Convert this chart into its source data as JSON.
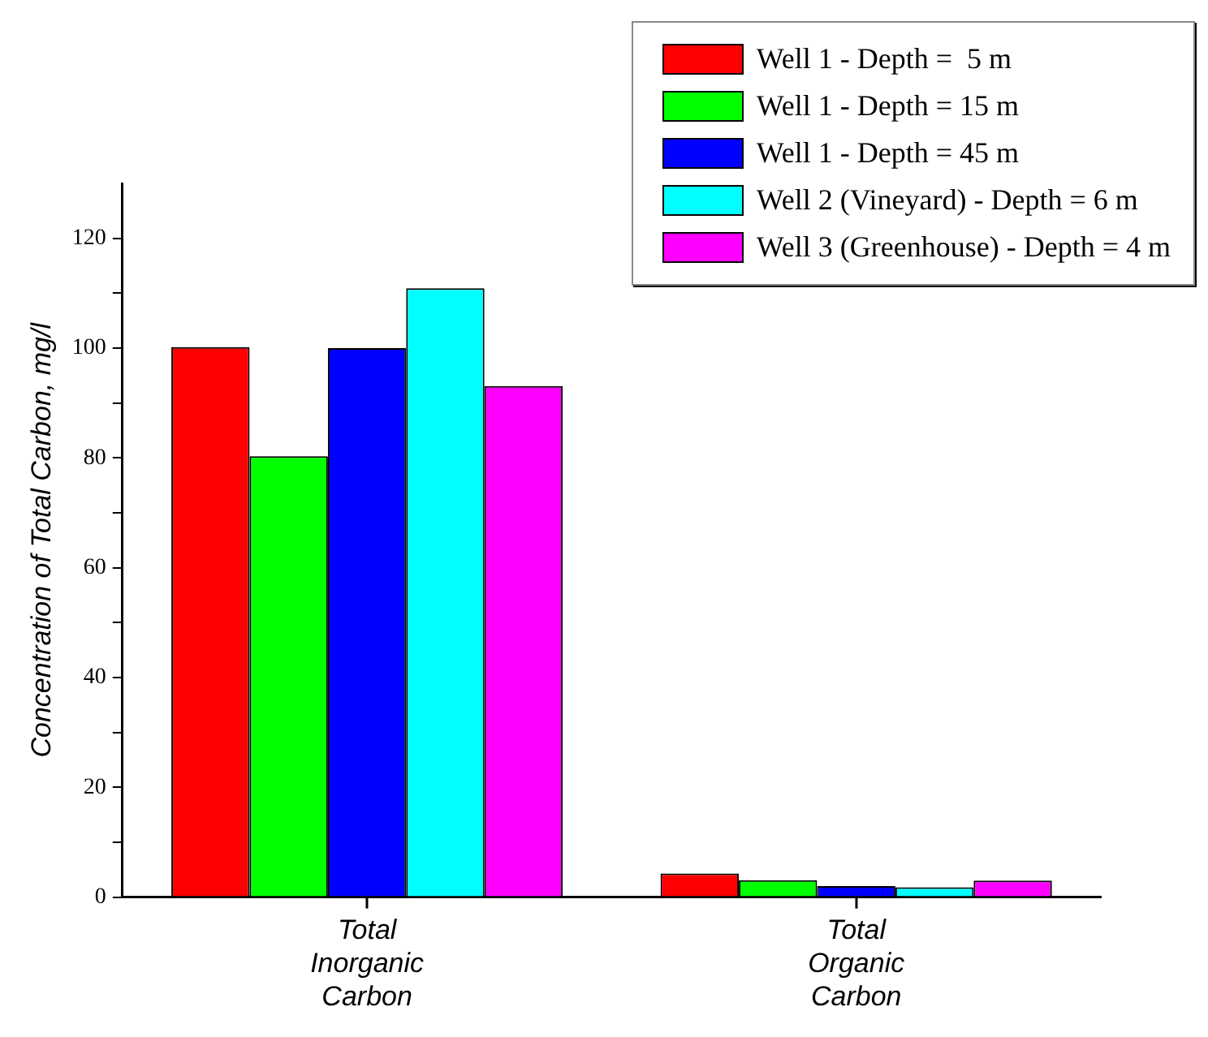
{
  "chart_data": {
    "type": "bar",
    "ylabel": "Concentration of Total Carbon, mg/l",
    "categories": [
      "Total Inorganic Carbon",
      "Total Organic Carbon"
    ],
    "series": [
      {
        "name": "Well 1 - Depth =  5 m",
        "color": "#ff0000",
        "values": [
          100.2,
          4.3
        ]
      },
      {
        "name": "Well 1 - Depth = 15 m",
        "color": "#00ff00",
        "values": [
          80.3,
          3.1
        ]
      },
      {
        "name": "Well 1 - Depth = 45 m",
        "color": "#0000ff",
        "values": [
          100,
          2.0
        ]
      },
      {
        "name": "Well 2 (Vineyard) - Depth = 6 m",
        "color": "#00ffff",
        "values": [
          110.9,
          1.8
        ]
      },
      {
        "name": "Well 3 (Greenhouse) - Depth = 4 m",
        "color": "#ff00ff",
        "values": [
          93.1,
          3.0
        ]
      }
    ],
    "ylim": [
      0,
      130
    ],
    "yticks": [
      0,
      {
        "value": 10,
        "label": null
      },
      20,
      {
        "value": 30,
        "label": null
      },
      40,
      {
        "value": 50,
        "label": null
      },
      60,
      {
        "value": 70,
        "label": null
      },
      80,
      {
        "value": 90,
        "label": null
      },
      100,
      {
        "value": 110,
        "label": null
      },
      120
    ],
    "grid": false,
    "legend": "top right"
  }
}
